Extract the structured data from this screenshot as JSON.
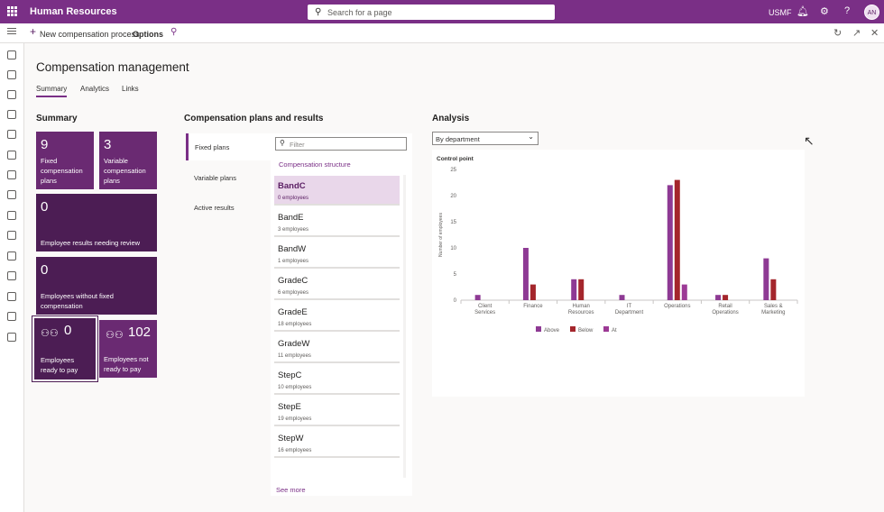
{
  "app": {
    "title": "Human Resources",
    "company": "USMF",
    "user_initials": "AN"
  },
  "search": {
    "placeholder": "Search for a page"
  },
  "actionbar": {
    "new_process": "New compensation process",
    "options": "Options"
  },
  "page": {
    "title": "Compensation management",
    "tabs": [
      {
        "label": "Summary"
      },
      {
        "label": "Analytics"
      },
      {
        "label": "Links"
      }
    ]
  },
  "summary": {
    "heading": "Summary",
    "tiles": [
      {
        "value": "9",
        "label_lines": [
          "Fixed",
          "compensation",
          "plans"
        ]
      },
      {
        "value": "3",
        "label_lines": [
          "Variable",
          "compensation",
          "plans"
        ]
      },
      {
        "value": "0",
        "label_lines": [
          "Employee results needing review"
        ]
      },
      {
        "value": "0",
        "label_lines": [
          "Employees without fixed",
          "compensation"
        ]
      },
      {
        "value": "0",
        "label_lines": [
          "Employees",
          "ready to pay"
        ],
        "icon": "people-icon"
      },
      {
        "value": "102",
        "label_lines": [
          "Employees not",
          "ready to pay"
        ],
        "icon": "people-icon"
      }
    ]
  },
  "plans": {
    "heading": "Compensation plans and results",
    "tabs": [
      {
        "label": "Fixed plans"
      },
      {
        "label": "Variable plans"
      },
      {
        "label": "Active results"
      }
    ],
    "filter_placeholder": "Filter",
    "structure_label": "Compensation structure",
    "items": [
      {
        "name": "BandC",
        "count": "0 employees"
      },
      {
        "name": "BandE",
        "count": "3 employees"
      },
      {
        "name": "BandW",
        "count": "1 employees"
      },
      {
        "name": "GradeC",
        "count": "6 employees"
      },
      {
        "name": "GradeE",
        "count": "18 employees"
      },
      {
        "name": "GradeW",
        "count": "11 employees"
      },
      {
        "name": "StepC",
        "count": "10 employees"
      },
      {
        "name": "StepE",
        "count": "19 employees"
      },
      {
        "name": "StepW",
        "count": "16 employees"
      }
    ],
    "see_more": "See more"
  },
  "analysis": {
    "heading": "Analysis",
    "dropdown_value": "By department"
  },
  "colors": {
    "brand": "#7a2f86",
    "above": "#8e3a94",
    "below": "#a4262c",
    "at": "#9c3a95"
  },
  "chart_data": {
    "type": "bar",
    "title": "Control point",
    "ylabel": "Number of employees",
    "xlabel": "",
    "ylim": [
      0,
      25
    ],
    "yticks": [
      0,
      5,
      10,
      15,
      20,
      25
    ],
    "grid": false,
    "legend": "bottom",
    "categories": [
      [
        "Client",
        "Services"
      ],
      [
        "Finance"
      ],
      [
        "Human",
        "Resources"
      ],
      [
        "IT",
        "Department"
      ],
      [
        "Operations"
      ],
      [
        "Retail",
        "Operations"
      ],
      [
        "Sales &",
        "Marketing"
      ]
    ],
    "series": [
      {
        "name": "Above",
        "color": "#8e3a94",
        "values": [
          1,
          10,
          4,
          1,
          22,
          1,
          8
        ]
      },
      {
        "name": "Below",
        "color": "#a4262c",
        "values": [
          0,
          3,
          4,
          0,
          23,
          1,
          4
        ]
      },
      {
        "name": "At",
        "color": "#9c3a95",
        "values": [
          0,
          0,
          0,
          0,
          3,
          0,
          0
        ]
      }
    ]
  }
}
